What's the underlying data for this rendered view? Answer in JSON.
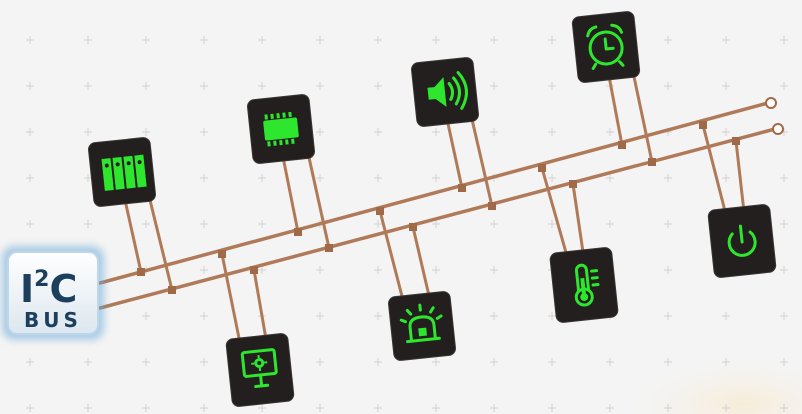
{
  "logo": {
    "main": "I",
    "superscript": "2",
    "main_suffix": "C",
    "sub": "BUS",
    "colors": {
      "border": "#bcd6ea",
      "text": "#1d3f5e",
      "glow": "#6aa9d8"
    }
  },
  "devices": [
    {
      "id": "memory",
      "icon": "storage-bank-icon"
    },
    {
      "id": "chip",
      "icon": "microchip-icon"
    },
    {
      "id": "speaker",
      "icon": "speaker-icon"
    },
    {
      "id": "clock",
      "icon": "alarm-clock-icon"
    },
    {
      "id": "display",
      "icon": "monitor-settings-icon"
    },
    {
      "id": "light",
      "icon": "warning-light-icon"
    },
    {
      "id": "thermometer",
      "icon": "thermometer-icon"
    },
    {
      "id": "power",
      "icon": "power-icon"
    }
  ],
  "colors": {
    "wire": "#b07a58",
    "icon_green": "#2ee62e",
    "box": "#221f1e",
    "background": "#f4f4f4"
  }
}
